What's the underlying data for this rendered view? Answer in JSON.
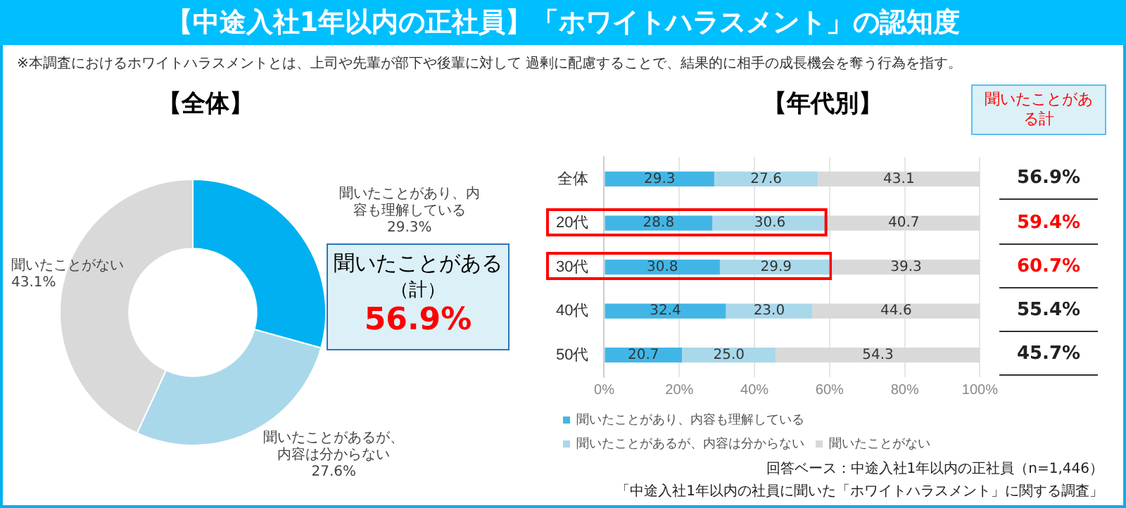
{
  "chart_data": [
    {
      "type": "donut",
      "title": "【中途入社1年以内の正社員】「ホワイトハラスメント」の認知度",
      "subtitle": "※本調査におけるホワイトハラスメントとは、上司や先輩が部下や後輩に対して 過剰に配慮することで、結果的に相手の成長機会を奪う行為を指す。",
      "categories": [
        "聞いたことがあり、内容も理解している",
        "聞いたことがあるが、内容は分からない",
        "聞いたことがない"
      ],
      "values": [
        29.3,
        27.6,
        43.1
      ],
      "value_labels": [
        "29.3%",
        "27.6%",
        "43.1%"
      ],
      "colors": [
        "#00b0f0",
        "#a9d8ea",
        "#d9d9d9"
      ],
      "annotations": [
        "【全体】",
        "聞いたことがある（計）",
        "56.9%"
      ],
      "legend": false
    },
    {
      "type": "bar",
      "title": "【年代別】",
      "orientation": "horizontal",
      "stacked": true,
      "categories": [
        "全体",
        "20代",
        "30代",
        "40代",
        "50代"
      ],
      "series": [
        {
          "name": "聞いたことがあり、内容も理解している",
          "color": "#41b6e6",
          "values": [
            29.3,
            28.8,
            30.8,
            32.4,
            20.7
          ],
          "value_labels": [
            "29.3",
            "28.8",
            "30.8",
            "32.4",
            "20.7"
          ]
        },
        {
          "name": "聞いたことがあるが、内容は分からない",
          "color": "#a9d8ea",
          "values": [
            27.6,
            30.6,
            29.9,
            23.0,
            25.0
          ],
          "value_labels": [
            "27.6",
            "30.6",
            "29.9",
            "23.0",
            "25.0"
          ]
        },
        {
          "name": "聞いたことがない",
          "color": "#d9d9d9",
          "values": [
            43.1,
            40.7,
            39.3,
            44.6,
            54.3
          ],
          "value_labels": [
            "43.1",
            "40.7",
            "39.3",
            "44.6",
            "54.3"
          ]
        }
      ],
      "xlim": [
        0,
        100
      ],
      "xticks": [
        {
          "value": 0,
          "label": "0%"
        },
        {
          "value": 20,
          "label": "20%"
        },
        {
          "value": 40,
          "label": "40%"
        },
        {
          "value": 60,
          "label": "60%"
        },
        {
          "value": 80,
          "label": "80%"
        },
        {
          "value": 100,
          "label": "100%"
        }
      ],
      "grid": "x",
      "legend": "bottom",
      "annotations": [
        "聞いたことがある計",
        "56.9%",
        "59.4%",
        "60.7%",
        "55.4%",
        "45.7%",
        "回答ベース：中途入社1年以内の正社員（n=1,446）",
        "「中途入社1年以内の社員に聞いた「ホワイトハラスメント」に関する調査」"
      ]
    }
  ]
}
